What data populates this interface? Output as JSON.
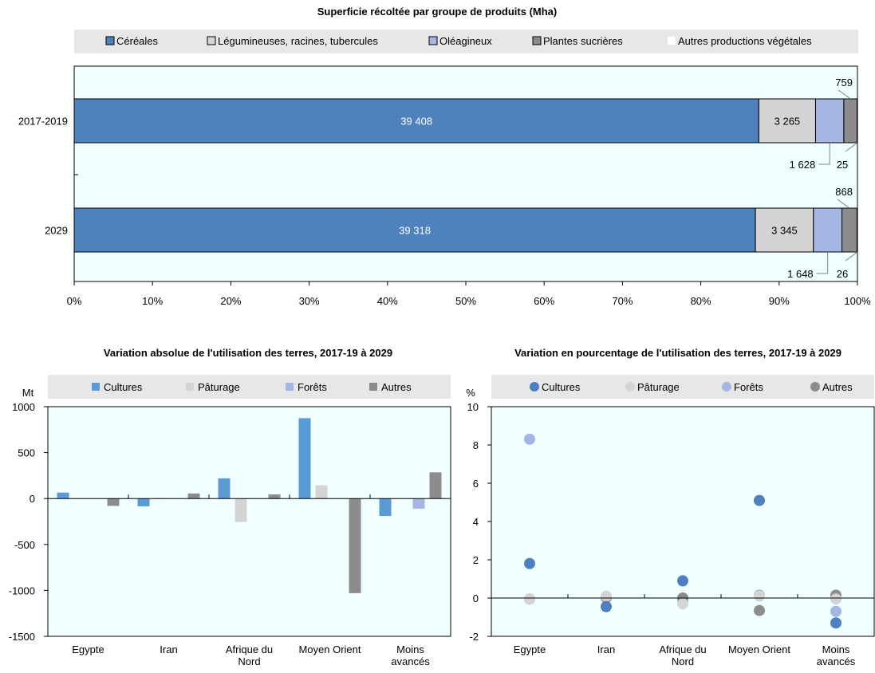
{
  "chart_data": [
    {
      "type": "bar",
      "orientation": "horizontal",
      "stacked": "percent",
      "title": "Superficie récoltée par groupe de produits (Mha)",
      "legend_position": "top",
      "categories": [
        "2017-2019",
        "2029"
      ],
      "series": [
        {
          "name": "Céréales",
          "values": [
            39408,
            39318
          ],
          "labels": [
            "39 408",
            "39 318"
          ]
        },
        {
          "name": "Légumineuses, racines, tubercules",
          "values": [
            3265,
            3345
          ],
          "labels": [
            "3 265",
            "3 345"
          ]
        },
        {
          "name": "Oléagineux",
          "values": [
            1628,
            1648
          ],
          "labels": [
            "1 628",
            "1 648"
          ]
        },
        {
          "name": "Plantes sucrières",
          "values": [
            759,
            868
          ],
          "labels": [
            "759",
            "868"
          ]
        },
        {
          "name": "Autres productions végétales",
          "values": [
            25,
            26
          ],
          "labels": [
            "25",
            "26"
          ]
        }
      ],
      "x_ticks": [
        "0%",
        "10%",
        "20%",
        "30%",
        "40%",
        "50%",
        "60%",
        "70%",
        "80%",
        "90%",
        "100%"
      ],
      "xlim": [
        0,
        100
      ],
      "colors": [
        "#4f81bd",
        "#d4d4d4",
        "#a5b6e2",
        "#8c8c8c",
        "#ffffff"
      ],
      "plot_bg": "#f0ffff"
    },
    {
      "type": "bar",
      "title": "Variation absolue de l'utilisation des terres, 2017-19 à 2029",
      "ylabel": "Mt",
      "legend_position": "top",
      "categories": [
        "Egypte",
        "Iran",
        "Afrique du Nord",
        "Moyen Orient",
        "Moins avancés"
      ],
      "category_lines": [
        [
          "Egypte"
        ],
        [
          "Iran"
        ],
        [
          "Afrique du",
          "Nord"
        ],
        [
          "Moyen Orient"
        ],
        [
          "Moins",
          "avancés"
        ]
      ],
      "series": [
        {
          "name": "Cultures",
          "values": [
            65,
            -85,
            220,
            875,
            -190
          ]
        },
        {
          "name": "Pâturage",
          "values": [
            0,
            5,
            -255,
            145,
            0
          ]
        },
        {
          "name": "Forêts",
          "values": [
            0,
            0,
            0,
            0,
            -110
          ]
        },
        {
          "name": "Autres",
          "values": [
            -80,
            55,
            45,
            -1030,
            285
          ]
        }
      ],
      "ylim": [
        -1500,
        1000
      ],
      "y_ticks": [
        "1000",
        "500",
        "0",
        "-500",
        "-1000",
        "-1500"
      ],
      "colors": [
        "#5b9bd5",
        "#d4d4d4",
        "#a5b6e2",
        "#8c8c8c"
      ],
      "plot_bg": "#f0ffff"
    },
    {
      "type": "scatter",
      "title": "Variation en pourcentage de l'utilisation des terres, 2017-19 à 2029",
      "ylabel": "%",
      "legend_position": "top",
      "categories": [
        "Egypte",
        "Iran",
        "Afrique du Nord",
        "Moyen Orient",
        "Moins avancés"
      ],
      "category_lines": [
        [
          "Egypte"
        ],
        [
          "Iran"
        ],
        [
          "Afrique du",
          "Nord"
        ],
        [
          "Moyen Orient"
        ],
        [
          "Moins",
          "avancés"
        ]
      ],
      "series": [
        {
          "name": "Cultures",
          "values": [
            1.8,
            -0.45,
            0.9,
            5.1,
            -1.3
          ]
        },
        {
          "name": "Pâturage",
          "values": [
            -0.05,
            0.1,
            -0.3,
            0.1,
            -0.05
          ]
        },
        {
          "name": "Forêts",
          "values": [
            8.3,
            0.0,
            -0.1,
            0.15,
            -0.7
          ]
        },
        {
          "name": "Autres",
          "values": [
            -0.05,
            0.05,
            0.0,
            -0.65,
            0.15
          ]
        }
      ],
      "ylim": [
        -2,
        10
      ],
      "y_ticks": [
        "10",
        "8",
        "6",
        "4",
        "2",
        "0",
        "-2"
      ],
      "colors": [
        "#4f7fc1",
        "#d4d4d4",
        "#a5b6e2",
        "#8c8c8c"
      ],
      "plot_bg": "#f0ffff"
    }
  ]
}
